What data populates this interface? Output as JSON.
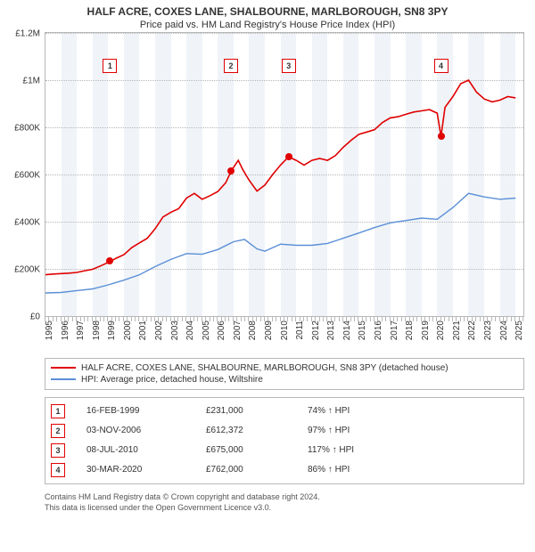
{
  "title_line1": "HALF ACRE, COXES LANE, SHALBOURNE, MARLBOROUGH, SN8 3PY",
  "title_line2": "Price paid vs. HM Land Registry's House Price Index (HPI)",
  "chart": {
    "type": "line",
    "background_color": "#ffffff",
    "band_color": "#f0f4f9",
    "grid_color": "#b7b7b7",
    "title_fontsize": 12,
    "subtitle_fontsize": 11,
    "axis_fontsize": 10,
    "x_min": 1995.0,
    "x_max": 2025.5,
    "y_min": 0,
    "y_max": 1200000,
    "y_ticks": [
      0,
      200000,
      400000,
      600000,
      800000,
      1000000,
      1200000
    ],
    "y_tick_labels": [
      "£0",
      "£200K",
      "£400K",
      "£600K",
      "£800K",
      "£1M",
      "£1.2M"
    ],
    "x_ticks": [
      1995,
      1996,
      1997,
      1998,
      1999,
      2000,
      2001,
      2002,
      2003,
      2004,
      2005,
      2006,
      2007,
      2008,
      2009,
      2010,
      2011,
      2012,
      2013,
      2014,
      2015,
      2016,
      2017,
      2018,
      2019,
      2020,
      2021,
      2022,
      2023,
      2024,
      2025
    ],
    "minor_tick_step": 0.25,
    "series": [
      {
        "name": "HALF ACRE, COXES LANE, SHALBOURNE, MARLBOROUGH, SN8 3PY (detached house)",
        "color": "#e00000",
        "line_width": 1.6,
        "data": [
          [
            1995.0,
            175000
          ],
          [
            1995.5,
            178000
          ],
          [
            1996.0,
            180000
          ],
          [
            1996.5,
            182000
          ],
          [
            1997.0,
            185000
          ],
          [
            1997.5,
            192000
          ],
          [
            1998.0,
            198000
          ],
          [
            1998.5,
            212000
          ],
          [
            1999.12,
            231000
          ],
          [
            1999.5,
            245000
          ],
          [
            2000.0,
            260000
          ],
          [
            2000.5,
            290000
          ],
          [
            2001.0,
            310000
          ],
          [
            2001.5,
            330000
          ],
          [
            2002.0,
            370000
          ],
          [
            2002.5,
            420000
          ],
          [
            2003.0,
            440000
          ],
          [
            2003.5,
            455000
          ],
          [
            2004.0,
            500000
          ],
          [
            2004.5,
            520000
          ],
          [
            2005.0,
            495000
          ],
          [
            2005.5,
            510000
          ],
          [
            2006.0,
            528000
          ],
          [
            2006.5,
            565000
          ],
          [
            2006.84,
            612372
          ],
          [
            2007.0,
            630000
          ],
          [
            2007.3,
            660000
          ],
          [
            2007.6,
            620000
          ],
          [
            2008.0,
            575000
          ],
          [
            2008.5,
            530000
          ],
          [
            2009.0,
            555000
          ],
          [
            2009.5,
            600000
          ],
          [
            2010.0,
            640000
          ],
          [
            2010.52,
            675000
          ],
          [
            2011.0,
            660000
          ],
          [
            2011.5,
            640000
          ],
          [
            2012.0,
            660000
          ],
          [
            2012.5,
            668000
          ],
          [
            2013.0,
            660000
          ],
          [
            2013.5,
            680000
          ],
          [
            2014.0,
            715000
          ],
          [
            2014.5,
            745000
          ],
          [
            2015.0,
            770000
          ],
          [
            2015.5,
            780000
          ],
          [
            2016.0,
            790000
          ],
          [
            2016.5,
            820000
          ],
          [
            2017.0,
            840000
          ],
          [
            2017.5,
            845000
          ],
          [
            2018.0,
            855000
          ],
          [
            2018.5,
            865000
          ],
          [
            2019.0,
            870000
          ],
          [
            2019.5,
            875000
          ],
          [
            2020.0,
            860000
          ],
          [
            2020.24,
            762000
          ],
          [
            2020.5,
            885000
          ],
          [
            2021.0,
            930000
          ],
          [
            2021.5,
            985000
          ],
          [
            2022.0,
            1000000
          ],
          [
            2022.5,
            950000
          ],
          [
            2023.0,
            920000
          ],
          [
            2023.5,
            908000
          ],
          [
            2024.0,
            915000
          ],
          [
            2024.5,
            930000
          ],
          [
            2025.0,
            925000
          ]
        ]
      },
      {
        "name": "HPI: Average price, detached house, Wiltshire",
        "color": "#5b8fd6",
        "line_width": 1.4,
        "data": [
          [
            1995.0,
            98000
          ],
          [
            1996.0,
            100000
          ],
          [
            1997.0,
            108000
          ],
          [
            1998.0,
            115000
          ],
          [
            1999.0,
            132000
          ],
          [
            2000.0,
            152000
          ],
          [
            2001.0,
            175000
          ],
          [
            2002.0,
            210000
          ],
          [
            2003.0,
            240000
          ],
          [
            2004.0,
            265000
          ],
          [
            2005.0,
            262000
          ],
          [
            2006.0,
            282000
          ],
          [
            2007.0,
            315000
          ],
          [
            2007.7,
            325000
          ],
          [
            2008.5,
            285000
          ],
          [
            2009.0,
            275000
          ],
          [
            2010.0,
            305000
          ],
          [
            2011.0,
            300000
          ],
          [
            2012.0,
            300000
          ],
          [
            2013.0,
            308000
          ],
          [
            2014.0,
            330000
          ],
          [
            2015.0,
            352000
          ],
          [
            2016.0,
            375000
          ],
          [
            2017.0,
            395000
          ],
          [
            2018.0,
            405000
          ],
          [
            2019.0,
            415000
          ],
          [
            2020.0,
            410000
          ],
          [
            2021.0,
            460000
          ],
          [
            2022.0,
            520000
          ],
          [
            2023.0,
            505000
          ],
          [
            2024.0,
            495000
          ],
          [
            2025.0,
            500000
          ]
        ]
      }
    ],
    "sale_markers": [
      {
        "idx": "1",
        "x": 1999.12,
        "y": 231000,
        "box_y": 1060000
      },
      {
        "idx": "2",
        "x": 2006.84,
        "y": 612372,
        "box_y": 1060000
      },
      {
        "idx": "3",
        "x": 2010.52,
        "y": 675000,
        "box_y": 1060000
      },
      {
        "idx": "4",
        "x": 2020.24,
        "y": 762000,
        "box_y": 1060000
      }
    ]
  },
  "legend": {
    "rows": [
      {
        "color": "#e00000",
        "label": "HALF ACRE, COXES LANE, SHALBOURNE, MARLBOROUGH, SN8 3PY (detached house)"
      },
      {
        "color": "#5b8fd6",
        "label": "HPI: Average price, detached house, Wiltshire"
      }
    ]
  },
  "sales_table": {
    "rows": [
      {
        "idx": "1",
        "date": "16-FEB-1999",
        "price": "£231,000",
        "hpi": "74% ↑ HPI"
      },
      {
        "idx": "2",
        "date": "03-NOV-2006",
        "price": "£612,372",
        "hpi": "97% ↑ HPI"
      },
      {
        "idx": "3",
        "date": "08-JUL-2010",
        "price": "£675,000",
        "hpi": "117% ↑ HPI"
      },
      {
        "idx": "4",
        "date": "30-MAR-2020",
        "price": "£762,000",
        "hpi": "86% ↑ HPI"
      }
    ]
  },
  "footer": {
    "line1": "Contains HM Land Registry data © Crown copyright and database right 2024.",
    "line2": "This data is licensed under the Open Government Licence v3.0."
  }
}
